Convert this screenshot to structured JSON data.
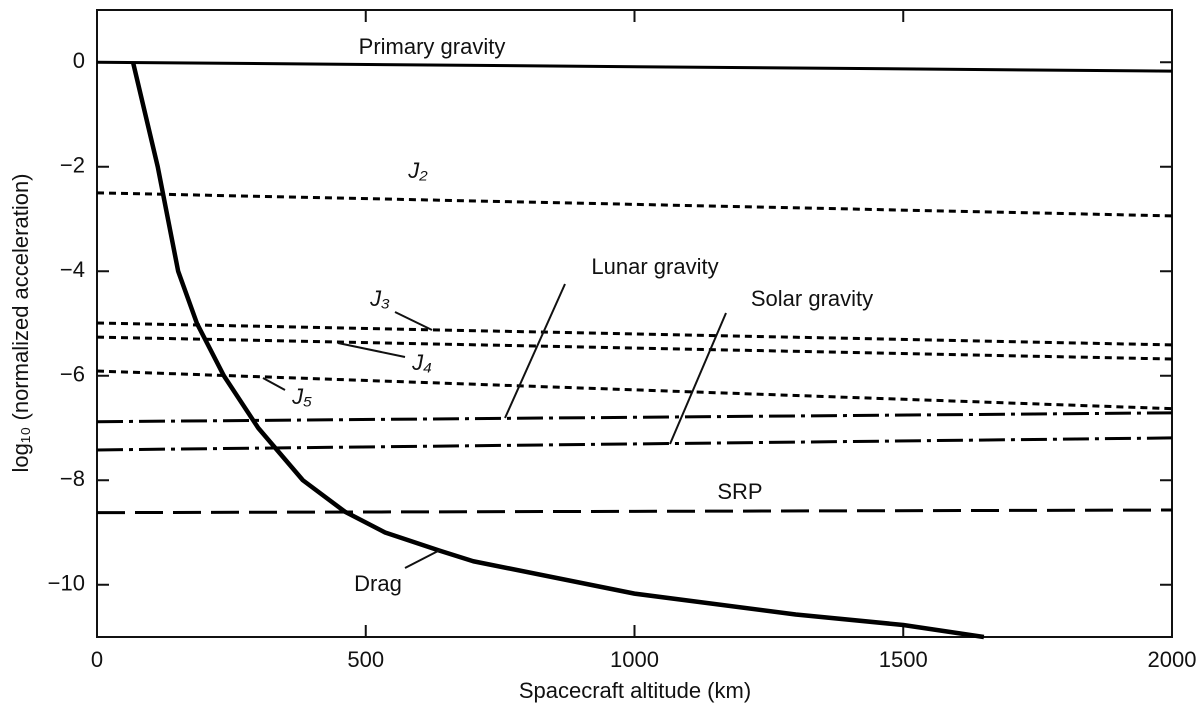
{
  "chart_data": {
    "type": "line",
    "x_label": "Spacecraft altitude (km)",
    "y_label": "log₁₀ (normalized acceleration)",
    "xlim": [
      0,
      2000
    ],
    "ylim": [
      -11,
      1
    ],
    "xticks": [
      0,
      500,
      1000,
      1500,
      2000
    ],
    "yticks": [
      {
        "value": -10,
        "label": "−10"
      },
      {
        "value": -8,
        "label": "−8"
      },
      {
        "value": -6,
        "label": "−6"
      },
      {
        "value": -4,
        "label": "−4"
      },
      {
        "value": -2,
        "label": "−2"
      },
      0
    ],
    "series": [
      {
        "name": "Primary gravity",
        "color": "#000000",
        "dash": "solid",
        "x": [
          0,
          2000
        ],
        "values": [
          0,
          -0.17
        ]
      },
      {
        "name": "J₂",
        "color": "#000000",
        "dash": "dotted",
        "x": [
          0,
          2000
        ],
        "values": [
          -2.5,
          -2.94
        ]
      },
      {
        "name": "J₃",
        "color": "#000000",
        "dash": "dotted",
        "x": [
          0,
          2000
        ],
        "values": [
          -4.99,
          -5.41
        ]
      },
      {
        "name": "J₄",
        "color": "#000000",
        "dash": "dotted",
        "x": [
          0,
          2000
        ],
        "values": [
          -5.26,
          -5.68
        ]
      },
      {
        "name": "J₅",
        "color": "#000000",
        "dash": "dotted",
        "x": [
          0,
          2000
        ],
        "values": [
          -5.91,
          -6.63
        ]
      },
      {
        "name": "Lunar gravity",
        "color": "#000000",
        "dash": "dashdot",
        "x": [
          0,
          2000
        ],
        "values": [
          -6.88,
          -6.71
        ]
      },
      {
        "name": "Solar gravity",
        "color": "#000000",
        "dash": "dashdot",
        "x": [
          0,
          2000
        ],
        "values": [
          -7.42,
          -7.19
        ]
      },
      {
        "name": "SRP",
        "color": "#000000",
        "dash": "dashed",
        "x": [
          0,
          2000
        ],
        "values": [
          -8.62,
          -8.57
        ]
      },
      {
        "name": "Drag",
        "color": "#000000",
        "dash": "thick",
        "x": [
          67,
          113,
          151,
          186,
          236,
          300,
          383,
          461,
          536,
          638,
          700,
          1000,
          1300,
          1500,
          1650
        ],
        "values": [
          0,
          -2,
          -4,
          -5,
          -6,
          -7,
          -8,
          -8.6,
          -9,
          -9.35,
          -9.55,
          -10.17,
          -10.57,
          -10.77,
          -11
        ]
      }
    ]
  }
}
